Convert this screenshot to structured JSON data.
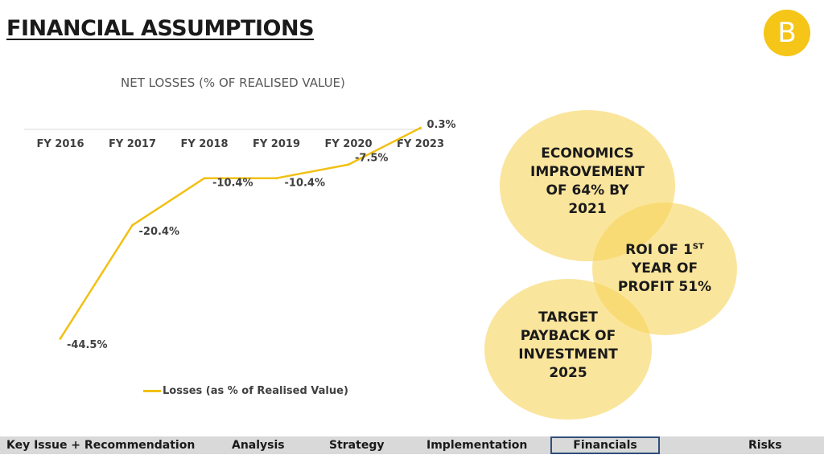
{
  "header": {
    "title": "FINANCIAL ASSUMPTIONS",
    "logo_letter": "B",
    "brand_color": "#f5c518"
  },
  "chart_data": {
    "type": "line",
    "title": "NET LOSSES (% OF REALISED VALUE)",
    "categories": [
      "FY 2016",
      "FY 2017",
      "FY 2018",
      "FY 2019",
      "FY 2020",
      "FY 2023"
    ],
    "series": [
      {
        "name": "Losses (as % of Realised Value)",
        "values": [
          -44.5,
          -20.4,
          -10.4,
          -10.4,
          -7.5,
          0.3
        ],
        "labels": [
          "-44.5%",
          "-20.4%",
          "-10.4%",
          "-10.4%",
          "-7.5%",
          "0.3%"
        ],
        "color": "#f2c013"
      }
    ],
    "ylim": [
      -46,
      1
    ],
    "grid": false,
    "legend": "bottom",
    "x_axis_position": "top"
  },
  "circles": [
    {
      "text": "ECONOMICS IMPROVEMENT OF 64% BY 2021"
    },
    {
      "line1": "ROI OF 1",
      "sup": "ST",
      "line2": "YEAR OF PROFIT 51%"
    },
    {
      "text": "TARGET PAYBACK OF INVESTMENT 2025"
    }
  ],
  "nav": {
    "items": [
      {
        "label": "Key Issue + Recommendation"
      },
      {
        "label": "Analysis"
      },
      {
        "label": "Strategy"
      },
      {
        "label": "Implementation"
      },
      {
        "label": "Financials",
        "active": true
      },
      {
        "label": "Risks"
      }
    ],
    "active_border_color": "#2f4f7a",
    "bar_color": "#d9d9d9"
  }
}
